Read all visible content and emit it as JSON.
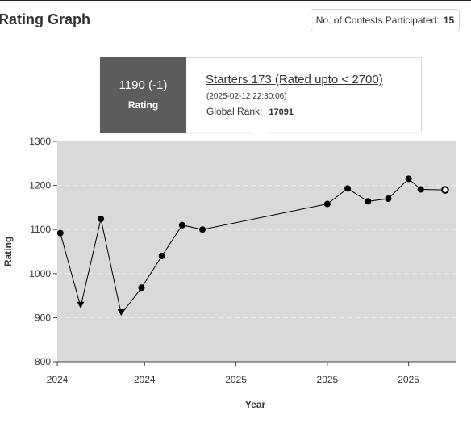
{
  "page": {
    "title": "Rating Graph",
    "contests_label": "No. of Contests Participated:",
    "contests_count": "15"
  },
  "tooltip": {
    "rating": "1190 (-1)",
    "rating_label": "Rating",
    "contest": "Starters 173 (Rated upto < 2700)",
    "date": "(2025-02-12 22:30:06)",
    "rank_label": "Global Rank:",
    "rank_value": "17091"
  },
  "colors": {
    "plot_bg": "#d9d9d9",
    "line": "#000000",
    "grid": "#ececec",
    "tooltip_left_bg": "#5c5c5c"
  },
  "chart_data": {
    "type": "line",
    "title": "",
    "xlabel": "Year",
    "ylabel": "Rating",
    "ylim": [
      800,
      1300
    ],
    "yticks": [
      800,
      900,
      1000,
      1100,
      1200,
      1300
    ],
    "xlim": [
      0,
      19.5
    ],
    "xticks": [
      {
        "x": 0,
        "label": "2024"
      },
      {
        "x": 4.3,
        "label": "2024"
      },
      {
        "x": 8.8,
        "label": "2025"
      },
      {
        "x": 13.3,
        "label": "2025"
      },
      {
        "x": 17.3,
        "label": "2025"
      }
    ],
    "grid": true,
    "points": [
      {
        "x": 0.15,
        "y": 1092,
        "marker": "dot"
      },
      {
        "x": 1.15,
        "y": 925,
        "marker": "down"
      },
      {
        "x": 2.15,
        "y": 1124,
        "marker": "dot"
      },
      {
        "x": 3.15,
        "y": 908,
        "marker": "down"
      },
      {
        "x": 4.15,
        "y": 968,
        "marker": "dot"
      },
      {
        "x": 5.15,
        "y": 1040,
        "marker": "dot"
      },
      {
        "x": 6.15,
        "y": 1110,
        "marker": "dot"
      },
      {
        "x": 7.15,
        "y": 1100,
        "marker": "dot"
      },
      {
        "x": 13.3,
        "y": 1158,
        "marker": "dot"
      },
      {
        "x": 14.3,
        "y": 1193,
        "marker": "dot"
      },
      {
        "x": 15.3,
        "y": 1164,
        "marker": "dot"
      },
      {
        "x": 16.3,
        "y": 1170,
        "marker": "dot"
      },
      {
        "x": 17.3,
        "y": 1215,
        "marker": "dot"
      },
      {
        "x": 17.9,
        "y": 1191,
        "marker": "dot"
      },
      {
        "x": 19.1,
        "y": 1190,
        "marker": "hollow"
      }
    ]
  }
}
